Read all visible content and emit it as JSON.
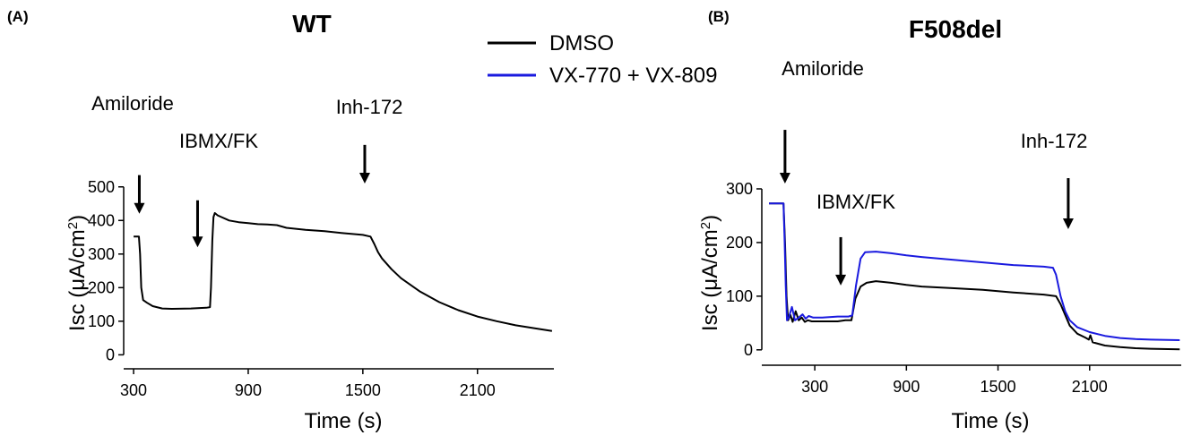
{
  "legend": {
    "items": [
      {
        "name": "DMSO",
        "color": "#000000"
      },
      {
        "name": "VX-770 + VX-809",
        "color": "#1a1adf"
      }
    ]
  },
  "chart_data": [
    {
      "panel_label": "(A)",
      "type": "line",
      "title": "WT",
      "xlabel": "Time (s)",
      "ylabel": "Isc (μA/cm²)",
      "ylabel_main": "Isc (μA/cm",
      "ylabel_sup": "2",
      "ylabel_tail": ")",
      "xlim": [
        295,
        2500
      ],
      "ylim": [
        -15,
        510
      ],
      "xticks": [
        300,
        900,
        1500,
        2100
      ],
      "yticks": [
        0,
        100,
        200,
        300,
        400,
        500
      ],
      "annotations": [
        {
          "text": "Amiloride",
          "x": 330,
          "arrow_top": 535,
          "arrow_bottom": 420
        },
        {
          "text": "IBMX/FK",
          "x": 635,
          "arrow_top": 460,
          "arrow_bottom": 320
        },
        {
          "text": "Inh-172",
          "x": 1510,
          "arrow_top": 625,
          "arrow_bottom": 510
        }
      ],
      "series": [
        {
          "name": "DMSO",
          "color": "#000000",
          "points": [
            [
              300,
              352
            ],
            [
              328,
              352
            ],
            [
              334,
              300
            ],
            [
              340,
              200
            ],
            [
              350,
              163
            ],
            [
              370,
              155
            ],
            [
              400,
              145
            ],
            [
              450,
              138
            ],
            [
              500,
              137
            ],
            [
              600,
              138
            ],
            [
              680,
              140
            ],
            [
              700,
              142
            ],
            [
              705,
              200
            ],
            [
              712,
              340
            ],
            [
              718,
              410
            ],
            [
              725,
              422
            ],
            [
              740,
              415
            ],
            [
              760,
              410
            ],
            [
              800,
              400
            ],
            [
              850,
              395
            ],
            [
              900,
              392
            ],
            [
              950,
              389
            ],
            [
              1000,
              388
            ],
            [
              1050,
              386
            ],
            [
              1100,
              378
            ],
            [
              1200,
              372
            ],
            [
              1300,
              368
            ],
            [
              1400,
              362
            ],
            [
              1500,
              357
            ],
            [
              1540,
              352
            ],
            [
              1560,
              330
            ],
            [
              1580,
              305
            ],
            [
              1600,
              287
            ],
            [
              1650,
              255
            ],
            [
              1700,
              228
            ],
            [
              1800,
              188
            ],
            [
              1900,
              157
            ],
            [
              2000,
              133
            ],
            [
              2100,
              114
            ],
            [
              2200,
              100
            ],
            [
              2300,
              88
            ],
            [
              2400,
              79
            ],
            [
              2490,
              71
            ]
          ]
        }
      ]
    },
    {
      "panel_label": "(B)",
      "type": "line",
      "title": "F508del",
      "xlabel": "Time (s)",
      "ylabel": "Isc (μA/cm²)",
      "ylabel_main": "Isc (μA/cm",
      "ylabel_sup": "2",
      "ylabel_tail": ")",
      "xlim": [
        0,
        2700
      ],
      "ylim": [
        -12,
        310
      ],
      "xticks": [
        300,
        900,
        1500,
        2100
      ],
      "yticks": [
        0,
        100,
        200,
        300
      ],
      "annotations": [
        {
          "text": "Amiloride",
          "x": 105,
          "arrow_top": 410,
          "arrow_bottom": 310
        },
        {
          "text": "IBMX/FK",
          "x": 470,
          "arrow_top": 210,
          "arrow_bottom": 120
        },
        {
          "text": "Inh-172",
          "x": 1960,
          "arrow_top": 320,
          "arrow_bottom": 225
        }
      ],
      "series": [
        {
          "name": "DMSO",
          "color": "#000000",
          "points": [
            [
              0,
              273
            ],
            [
              95,
              273
            ],
            [
              105,
              200
            ],
            [
              115,
              100
            ],
            [
              125,
              55
            ],
            [
              140,
              65
            ],
            [
              155,
              52
            ],
            [
              175,
              72
            ],
            [
              195,
              55
            ],
            [
              215,
              60
            ],
            [
              235,
              52
            ],
            [
              255,
              55
            ],
            [
              280,
              53
            ],
            [
              350,
              53
            ],
            [
              450,
              53
            ],
            [
              500,
              55
            ],
            [
              540,
              55
            ],
            [
              565,
              95
            ],
            [
              600,
              118
            ],
            [
              640,
              125
            ],
            [
              700,
              128
            ],
            [
              800,
              125
            ],
            [
              900,
              121
            ],
            [
              1000,
              118
            ],
            [
              1200,
              115
            ],
            [
              1400,
              112
            ],
            [
              1600,
              107
            ],
            [
              1800,
              103
            ],
            [
              1880,
              100
            ],
            [
              1910,
              85
            ],
            [
              1940,
              65
            ],
            [
              1970,
              45
            ],
            [
              2020,
              30
            ],
            [
              2070,
              23
            ],
            [
              2095,
              19
            ],
            [
              2105,
              27
            ],
            [
              2120,
              14
            ],
            [
              2200,
              8
            ],
            [
              2300,
              5
            ],
            [
              2400,
              3
            ],
            [
              2500,
              2
            ],
            [
              2690,
              1
            ]
          ]
        },
        {
          "name": "VX-770 + VX-809",
          "color": "#1a1adf",
          "points": [
            [
              0,
              273
            ],
            [
              95,
              273
            ],
            [
              103,
              200
            ],
            [
              110,
              120
            ],
            [
              118,
              55
            ],
            [
              130,
              60
            ],
            [
              150,
              80
            ],
            [
              170,
              55
            ],
            [
              195,
              60
            ],
            [
              220,
              66
            ],
            [
              240,
              58
            ],
            [
              260,
              63
            ],
            [
              290,
              60
            ],
            [
              350,
              60
            ],
            [
              450,
              62
            ],
            [
              520,
              62
            ],
            [
              545,
              64
            ],
            [
              570,
              120
            ],
            [
              600,
              170
            ],
            [
              630,
              182
            ],
            [
              700,
              183
            ],
            [
              800,
              180
            ],
            [
              900,
              176
            ],
            [
              1000,
              173
            ],
            [
              1200,
              168
            ],
            [
              1400,
              163
            ],
            [
              1600,
              158
            ],
            [
              1800,
              155
            ],
            [
              1860,
              153
            ],
            [
              1880,
              140
            ],
            [
              1910,
              100
            ],
            [
              1940,
              72
            ],
            [
              1970,
              55
            ],
            [
              2020,
              42
            ],
            [
              2100,
              33
            ],
            [
              2200,
              26
            ],
            [
              2300,
              22
            ],
            [
              2400,
              20
            ],
            [
              2500,
              19
            ],
            [
              2690,
              18
            ]
          ]
        }
      ]
    }
  ]
}
